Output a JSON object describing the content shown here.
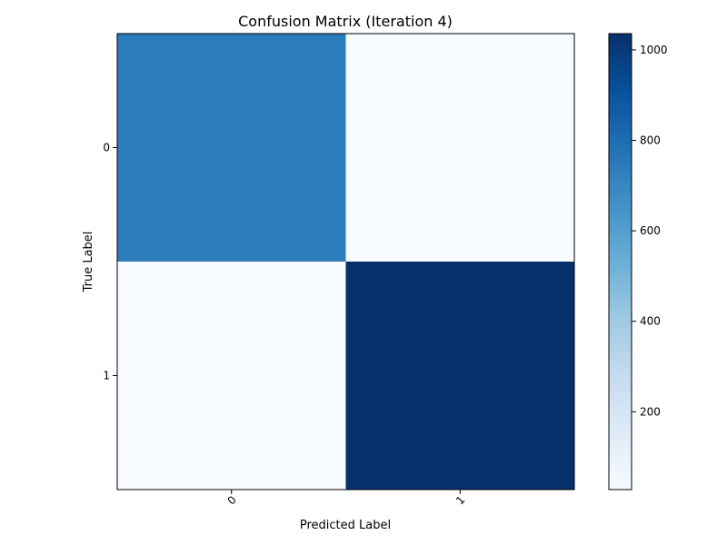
{
  "chart_data": {
    "type": "heatmap",
    "title": "Confusion Matrix (Iteration 4)",
    "xlabel": "Predicted Label",
    "ylabel": "True Label",
    "x_categories": [
      "0",
      "1"
    ],
    "y_categories": [
      "0",
      "1"
    ],
    "matrix": [
      [
        742,
        28
      ],
      [
        30,
        1036
      ]
    ],
    "colormap": "Blues",
    "colorbar": {
      "range": [
        28,
        1036
      ],
      "ticks": [
        200,
        400,
        600,
        800,
        1000
      ],
      "tick_labels": [
        "200",
        "400",
        "600",
        "800",
        "1000"
      ]
    },
    "grid": false,
    "legend": "none"
  }
}
